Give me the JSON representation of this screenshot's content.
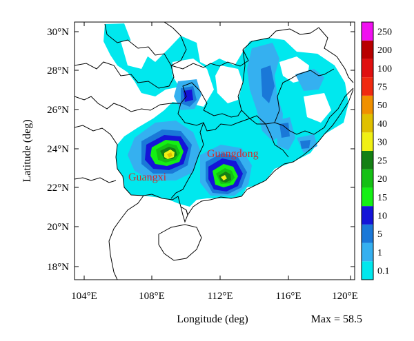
{
  "map": {
    "x_axis_label": "Longitude (deg)",
    "y_axis_label": "Latitude (deg)",
    "max_annotation": "Max = 58.5",
    "lon_ticks": [
      "104°E",
      "108°E",
      "112°E",
      "116°E",
      "120°E"
    ],
    "lat_ticks": [
      "30°N",
      "28°N",
      "26°N",
      "24°N",
      "22°N",
      "20°N",
      "18°N"
    ],
    "regions": [
      {
        "name": "Guangxi"
      },
      {
        "name": "Guangdong"
      }
    ],
    "colorbar": {
      "levels": [
        "0.1",
        "1",
        "5",
        "10",
        "15",
        "20",
        "25",
        "30",
        "40",
        "50",
        "75",
        "100",
        "200",
        "250"
      ],
      "colors": [
        "#00e8ee",
        "#35b0f0",
        "#1a78d8",
        "#1414d8",
        "#14f014",
        "#14c014",
        "#148014",
        "#f0f014",
        "#e0c000",
        "#f09000",
        "#f02a10",
        "#e01010",
        "#b80000",
        "#f010f0"
      ]
    }
  }
}
